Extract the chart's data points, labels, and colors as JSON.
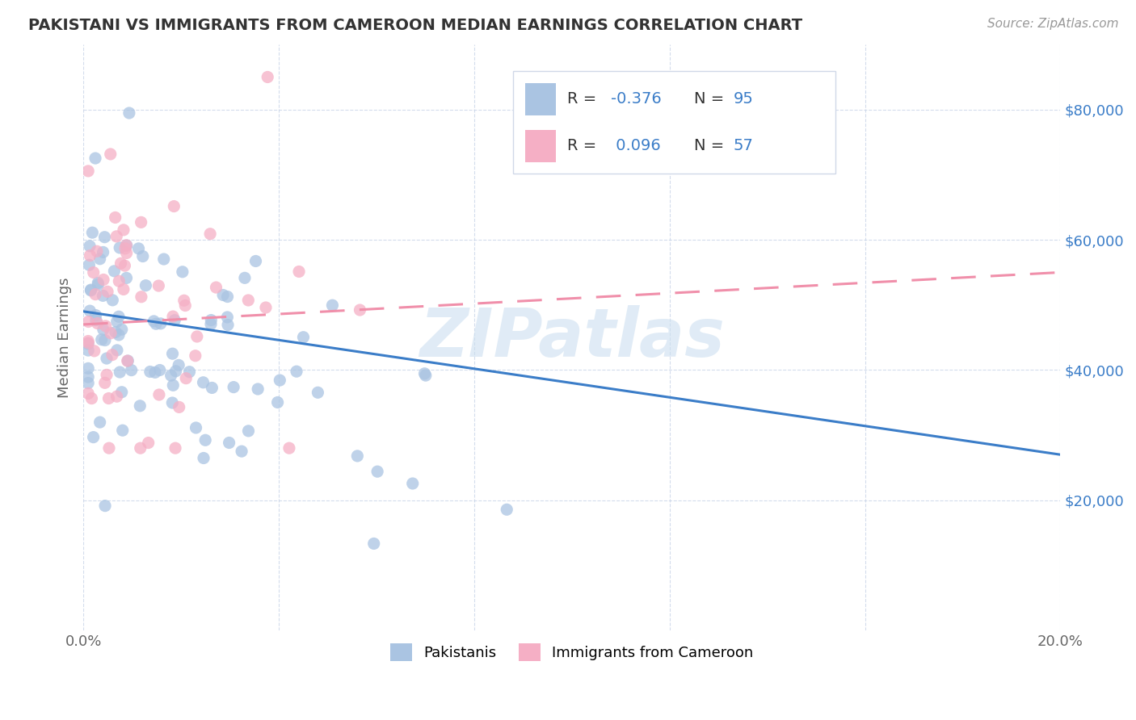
{
  "title": "PAKISTANI VS IMMIGRANTS FROM CAMEROON MEDIAN EARNINGS CORRELATION CHART",
  "source": "Source: ZipAtlas.com",
  "ylabel": "Median Earnings",
  "yticks": [
    20000,
    40000,
    60000,
    80000
  ],
  "ytick_labels": [
    "$20,000",
    "$40,000",
    "$60,000",
    "$80,000"
  ],
  "pakistani_R": -0.376,
  "pakistani_N": 95,
  "cameroon_R": 0.096,
  "cameroon_N": 57,
  "pakistani_color": "#aac4e2",
  "cameroon_color": "#f5afc5",
  "pakistani_line_color": "#3b7dc8",
  "cameroon_line_color": "#f08faa",
  "r_value_color": "#3b7dc8",
  "n_value_color": "#3b7dc8",
  "watermark_color": "#ccdff0",
  "xlim": [
    0.0,
    0.2
  ],
  "ylim": [
    0,
    90000
  ],
  "pak_line_x0": 0.0,
  "pak_line_y0": 49000,
  "pak_line_x1": 0.2,
  "pak_line_y1": 27000,
  "cam_line_x0": 0.0,
  "cam_line_y0": 47000,
  "cam_line_x1": 0.2,
  "cam_line_y1": 55000
}
